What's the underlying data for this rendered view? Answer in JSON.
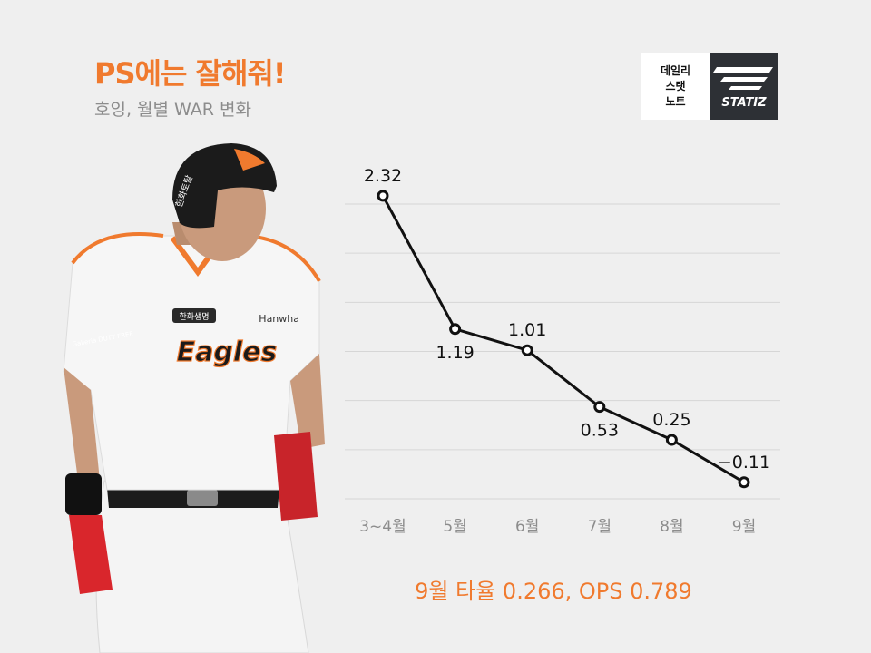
{
  "header": {
    "title": "PS에는 잘해줘!",
    "subtitle": "호잉, 월별 WAR 변화"
  },
  "logo": {
    "line1": "데일리",
    "line2": "스탯",
    "line3": "노트",
    "brand": "STATIZ"
  },
  "player_image": {
    "helmet_text": "한화토탈",
    "jersey_text": "Eagles",
    "chest_text": "Hanwha",
    "patch_text": "한화생명",
    "sleeve_text": "Galleria DUTY FREE"
  },
  "chart_data": {
    "type": "line",
    "title": "호잉, 월별 WAR 변화",
    "categories": [
      "3~4월",
      "5월",
      "6월",
      "7월",
      "8월",
      "9월"
    ],
    "series": [
      {
        "values": [
          2.32,
          1.19,
          1.01,
          0.53,
          0.25,
          -0.11
        ]
      }
    ],
    "data_labels": [
      "2.32",
      "1.19",
      "1.01",
      "0.53",
      "0.25",
      "−0.11"
    ],
    "xlabel": "",
    "ylabel": "",
    "ylim": [
      -0.25,
      2.25
    ],
    "grid": true,
    "legend": "none",
    "line_color": "#111111",
    "marker_fill": "#ffffff",
    "grid_color": "#d6d6d6"
  },
  "footer": {
    "note": "9월 타율 0.266,  OPS 0.789"
  },
  "colors": {
    "accent": "#f07a2e",
    "background": "#efefef",
    "logo_dark": "#2d3035"
  }
}
